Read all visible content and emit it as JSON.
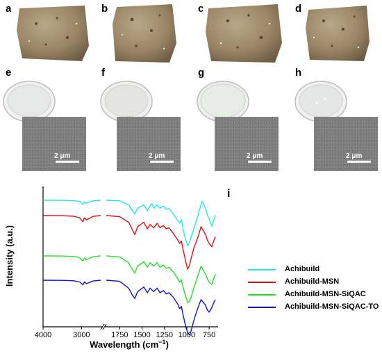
{
  "panels": {
    "top_labels": [
      "a",
      "b",
      "c",
      "d"
    ],
    "mid_labels": [
      "e",
      "f",
      "g",
      "h"
    ],
    "chart_label": "i",
    "scale_bar_text": "2 μm"
  },
  "colors": {
    "stone": "#9a8666",
    "stone_light": "#b8a686",
    "stone_dark": "#6c5a44",
    "sem_bg": "#7d7d7d"
  },
  "chart_data": {
    "type": "line",
    "title": "",
    "xlabel": "Wavelength (cm⁻¹)",
    "ylabel": "Intensity (a.u.)",
    "xlabel_main": "Wavelength (cm",
    "xlabel_sup": "−1",
    "xlabel_close": ")",
    "x_broken_axis": true,
    "x_reversed": true,
    "xticks_left": [
      "4000",
      "3000"
    ],
    "xticks_right": [
      "1750",
      "1500",
      "1250",
      "1000",
      "750"
    ],
    "xlim_left": [
      4000,
      2500
    ],
    "xlim_right": [
      1900,
      650
    ],
    "grid": false,
    "legend_position": "right",
    "series": [
      {
        "name": "Achibuild",
        "color": "#1ee9f0",
        "left": [
          [
            4000,
            0
          ],
          [
            3500,
            0.1
          ],
          [
            3200,
            0.8
          ],
          [
            3050,
            2
          ],
          [
            2960,
            7
          ],
          [
            2925,
            3
          ],
          [
            2870,
            5
          ],
          [
            2700,
            1
          ],
          [
            2500,
            0
          ]
        ],
        "right": [
          [
            1900,
            0
          ],
          [
            1750,
            1
          ],
          [
            1650,
            8
          ],
          [
            1600,
            20
          ],
          [
            1580,
            24
          ],
          [
            1550,
            14
          ],
          [
            1480,
            8
          ],
          [
            1440,
            18
          ],
          [
            1410,
            10
          ],
          [
            1390,
            6
          ],
          [
            1370,
            14
          ],
          [
            1330,
            8
          ],
          [
            1300,
            14
          ],
          [
            1260,
            10
          ],
          [
            1230,
            16
          ],
          [
            1200,
            14
          ],
          [
            1150,
            24
          ],
          [
            1100,
            36
          ],
          [
            1080,
            40
          ],
          [
            1060,
            34
          ],
          [
            1040,
            52
          ],
          [
            1010,
            70
          ],
          [
            990,
            80
          ],
          [
            970,
            74
          ],
          [
            950,
            64
          ],
          [
            900,
            40
          ],
          [
            870,
            24
          ],
          [
            830,
            2
          ],
          [
            790,
            14
          ],
          [
            770,
            26
          ],
          [
            750,
            32
          ],
          [
            720,
            46
          ],
          [
            700,
            36
          ],
          [
            680,
            26
          ]
        ]
      },
      {
        "name": "Achibuild-MSN",
        "color": "#e01010",
        "left": [
          [
            4000,
            0
          ],
          [
            3500,
            0.2
          ],
          [
            3200,
            1.2
          ],
          [
            3050,
            4
          ],
          [
            2960,
            11
          ],
          [
            2925,
            4
          ],
          [
            2870,
            8
          ],
          [
            2700,
            1.5
          ],
          [
            2500,
            0
          ]
        ],
        "right": [
          [
            1900,
            0
          ],
          [
            1750,
            2
          ],
          [
            1650,
            12
          ],
          [
            1600,
            28
          ],
          [
            1580,
            34
          ],
          [
            1550,
            20
          ],
          [
            1480,
            12
          ],
          [
            1440,
            24
          ],
          [
            1410,
            16
          ],
          [
            1370,
            22
          ],
          [
            1330,
            14
          ],
          [
            1300,
            22
          ],
          [
            1260,
            18
          ],
          [
            1230,
            24
          ],
          [
            1200,
            22
          ],
          [
            1150,
            32
          ],
          [
            1100,
            44
          ],
          [
            1080,
            50
          ],
          [
            1060,
            46
          ],
          [
            1040,
            62
          ],
          [
            1010,
            84
          ],
          [
            990,
            96
          ],
          [
            970,
            90
          ],
          [
            950,
            76
          ],
          [
            920,
            58
          ],
          [
            900,
            50
          ],
          [
            870,
            36
          ],
          [
            840,
            20
          ],
          [
            820,
            26
          ],
          [
            790,
            34
          ],
          [
            770,
            44
          ],
          [
            750,
            50
          ],
          [
            720,
            56
          ],
          [
            700,
            46
          ],
          [
            680,
            38
          ]
        ]
      },
      {
        "name": "Achibuild-MSN-SiQAC",
        "color": "#20e020",
        "left": [
          [
            4000,
            0
          ],
          [
            3500,
            0.2
          ],
          [
            3200,
            1
          ],
          [
            3050,
            3
          ],
          [
            2960,
            9
          ],
          [
            2925,
            4
          ],
          [
            2870,
            7
          ],
          [
            2700,
            1.5
          ],
          [
            2500,
            0
          ]
        ],
        "right": [
          [
            1900,
            0
          ],
          [
            1750,
            2
          ],
          [
            1650,
            12
          ],
          [
            1600,
            26
          ],
          [
            1580,
            30
          ],
          [
            1550,
            18
          ],
          [
            1480,
            10
          ],
          [
            1440,
            20
          ],
          [
            1410,
            12
          ],
          [
            1370,
            18
          ],
          [
            1330,
            12
          ],
          [
            1300,
            20
          ],
          [
            1260,
            16
          ],
          [
            1230,
            22
          ],
          [
            1200,
            20
          ],
          [
            1150,
            28
          ],
          [
            1100,
            40
          ],
          [
            1080,
            46
          ],
          [
            1060,
            42
          ],
          [
            1040,
            56
          ],
          [
            1010,
            72
          ],
          [
            990,
            82
          ],
          [
            970,
            80
          ],
          [
            950,
            72
          ],
          [
            920,
            56
          ],
          [
            900,
            46
          ],
          [
            870,
            32
          ],
          [
            840,
            18
          ],
          [
            820,
            24
          ],
          [
            790,
            32
          ],
          [
            770,
            40
          ],
          [
            750,
            46
          ],
          [
            720,
            50
          ],
          [
            700,
            40
          ],
          [
            680,
            32
          ]
        ]
      },
      {
        "name": "Achibuild-MSN-SiQAC-TO",
        "color": "#1010d0",
        "left": [
          [
            4000,
            0
          ],
          [
            3500,
            0.2
          ],
          [
            3200,
            1
          ],
          [
            3050,
            3
          ],
          [
            2960,
            8
          ],
          [
            2925,
            3
          ],
          [
            2870,
            6
          ],
          [
            2700,
            1.5
          ],
          [
            2500,
            0
          ]
        ],
        "right": [
          [
            1900,
            0
          ],
          [
            1750,
            2
          ],
          [
            1650,
            14
          ],
          [
            1600,
            28
          ],
          [
            1580,
            32
          ],
          [
            1550,
            20
          ],
          [
            1480,
            12
          ],
          [
            1440,
            22
          ],
          [
            1410,
            14
          ],
          [
            1370,
            20
          ],
          [
            1330,
            14
          ],
          [
            1300,
            22
          ],
          [
            1260,
            18
          ],
          [
            1230,
            24
          ],
          [
            1200,
            22
          ],
          [
            1150,
            30
          ],
          [
            1100,
            42
          ],
          [
            1080,
            50
          ],
          [
            1060,
            46
          ],
          [
            1040,
            62
          ],
          [
            1010,
            82
          ],
          [
            990,
            92
          ],
          [
            970,
            96
          ],
          [
            950,
            88
          ],
          [
            920,
            70
          ],
          [
            900,
            60
          ],
          [
            870,
            46
          ],
          [
            840,
            34
          ],
          [
            820,
            38
          ],
          [
            790,
            44
          ],
          [
            770,
            52
          ],
          [
            750,
            56
          ],
          [
            720,
            48
          ],
          [
            700,
            40
          ],
          [
            680,
            34
          ]
        ]
      }
    ]
  }
}
